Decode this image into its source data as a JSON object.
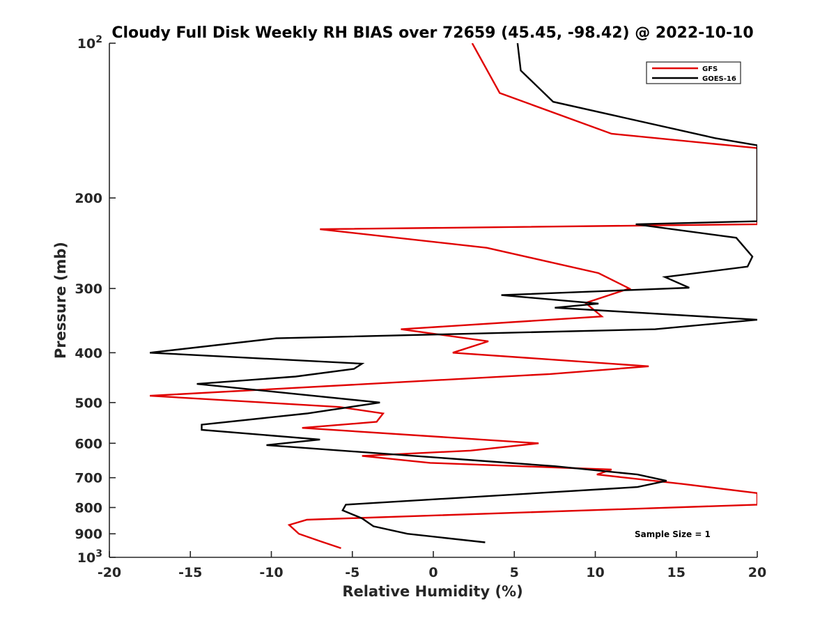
{
  "chart_data": {
    "type": "line",
    "title": "Cloudy Full Disk Weekly RH BIAS over 72659 (45.45, -98.42) @ 2022-10-10",
    "xlabel": "Relative Humidity (%)",
    "ylabel": "Pressure (mb)",
    "xlim": [
      -20,
      20
    ],
    "ylim": [
      100,
      1000
    ],
    "y_scale": "log",
    "y_reversed": true,
    "grid": false,
    "legend_position": "top-right",
    "x_ticks": [
      "-20",
      "-15",
      "-10",
      "-5",
      "0",
      "5",
      "10",
      "15",
      "20"
    ],
    "y_ticks": [
      {
        "value": 100,
        "base": "10",
        "exp": "2"
      },
      {
        "value": 200,
        "label": "200"
      },
      {
        "value": 300,
        "label": "300"
      },
      {
        "value": 400,
        "label": "400"
      },
      {
        "value": 500,
        "label": "500"
      },
      {
        "value": 600,
        "label": "600"
      },
      {
        "value": 700,
        "label": "700"
      },
      {
        "value": 800,
        "label": "800"
      },
      {
        "value": 900,
        "label": "900"
      },
      {
        "value": 1000,
        "base": "10",
        "exp": "3"
      }
    ],
    "series": [
      {
        "name": "GFS",
        "color": "#e00000",
        "points": [
          [
            2.4,
            100
          ],
          [
            4.1,
            125
          ],
          [
            11,
            150
          ],
          [
            20,
            160
          ],
          [
            20,
            225
          ],
          [
            -7.0,
            230
          ],
          [
            3.3,
            250
          ],
          [
            10.2,
            280
          ],
          [
            12.1,
            300
          ],
          [
            9.4,
            320
          ],
          [
            10.4,
            340
          ],
          [
            -2.0,
            360
          ],
          [
            3.4,
            380
          ],
          [
            1.2,
            400
          ],
          [
            13.3,
            425
          ],
          [
            7.2,
            440
          ],
          [
            -17.5,
            485
          ],
          [
            -5.8,
            510
          ],
          [
            -3.1,
            525
          ],
          [
            -3.5,
            545
          ],
          [
            -8.1,
            560
          ],
          [
            6.5,
            600
          ],
          [
            2.3,
            620
          ],
          [
            -4.4,
            635
          ],
          [
            -0.2,
            655
          ],
          [
            11.0,
            675
          ],
          [
            10.1,
            690
          ],
          [
            15.4,
            720
          ],
          [
            20,
            750
          ],
          [
            20,
            790
          ],
          [
            -7.8,
            845
          ],
          [
            -8.9,
            865
          ],
          [
            -8.3,
            900
          ],
          [
            -7.0,
            930
          ],
          [
            -5.7,
            960
          ]
        ]
      },
      {
        "name": "GOES-16",
        "color": "#000000",
        "points": [
          [
            5.2,
            100
          ],
          [
            5.4,
            113
          ],
          [
            7.4,
            130
          ],
          [
            17.4,
            153
          ],
          [
            20,
            158
          ],
          [
            20,
            222
          ],
          [
            12.5,
            225
          ],
          [
            18.7,
            239
          ],
          [
            19.7,
            260
          ],
          [
            19.4,
            272
          ],
          [
            14.3,
            285
          ],
          [
            15.8,
            299
          ],
          [
            4.2,
            309
          ],
          [
            10.2,
            321
          ],
          [
            7.5,
            327
          ],
          [
            20,
            345
          ],
          [
            13.7,
            360
          ],
          [
            -9.7,
            375
          ],
          [
            -17.5,
            400
          ],
          [
            -4.4,
            420
          ],
          [
            -4.9,
            430
          ],
          [
            -8.5,
            445
          ],
          [
            -14.6,
            460
          ],
          [
            -3.3,
            500
          ],
          [
            -7.8,
            525
          ],
          [
            -14.3,
            552
          ],
          [
            -14.3,
            565
          ],
          [
            -7.0,
            590
          ],
          [
            -10.3,
            605
          ],
          [
            7.5,
            665
          ],
          [
            12.6,
            690
          ],
          [
            14.4,
            710
          ],
          [
            12.6,
            730
          ],
          [
            -5.4,
            790
          ],
          [
            -5.6,
            810
          ],
          [
            -4.4,
            840
          ],
          [
            -3.7,
            870
          ],
          [
            -1.6,
            900
          ],
          [
            3.2,
            935
          ]
        ]
      }
    ],
    "annotation": "Sample Size = 1"
  }
}
